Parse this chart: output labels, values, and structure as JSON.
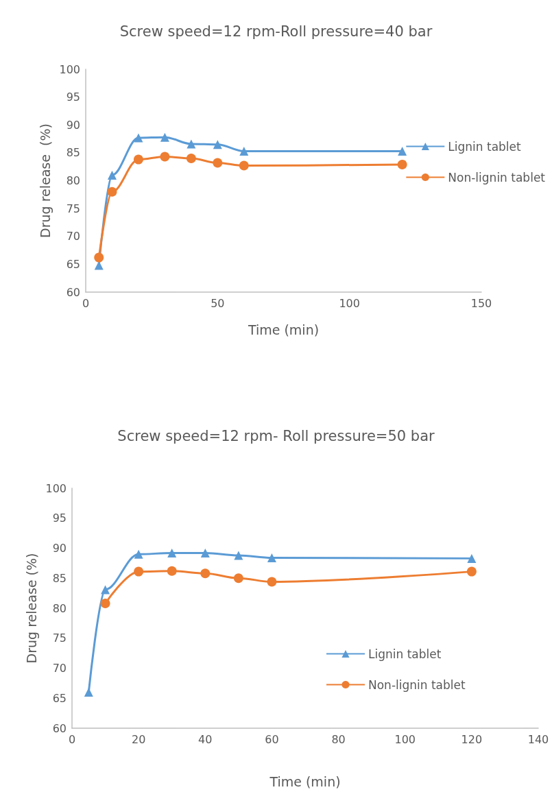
{
  "chart_data": [
    {
      "type": "line",
      "title": "Screw speed=12 rpm-Roll pressure=40 bar",
      "xlabel": "Time (min)",
      "ylabel": "Drug release  (%)",
      "xlim": [
        0,
        150
      ],
      "xticks": [
        0,
        50,
        100,
        150
      ],
      "ylim": [
        60,
        100
      ],
      "yticks": [
        60,
        65,
        70,
        75,
        80,
        85,
        90,
        95,
        100
      ],
      "grid": false,
      "legend": "right",
      "series": [
        {
          "name": "Lignin tablet",
          "color": "#5b9bd5",
          "marker": "triangle",
          "x": [
            5,
            10,
            20,
            30,
            40,
            50,
            60,
            120
          ],
          "values": [
            64.8,
            81.0,
            87.7,
            87.8,
            86.6,
            86.5,
            85.3,
            85.3
          ]
        },
        {
          "name": "Non-lignin tablet",
          "color": "#ed7d31",
          "marker": "circle",
          "x": [
            5,
            10,
            20,
            30,
            40,
            50,
            60,
            120
          ],
          "values": [
            66.2,
            78.0,
            83.8,
            84.3,
            84.0,
            83.2,
            82.7,
            82.9
          ]
        }
      ]
    },
    {
      "type": "line",
      "title": "Screw speed=12 rpm- Roll pressure=50 bar",
      "xlabel": "Time (min)",
      "ylabel": "Drug release (%)",
      "xlim": [
        0,
        140
      ],
      "xticks": [
        0,
        20,
        40,
        60,
        80,
        100,
        120,
        140
      ],
      "ylim": [
        60,
        100
      ],
      "yticks": [
        60,
        65,
        70,
        75,
        80,
        85,
        90,
        95,
        100
      ],
      "grid": false,
      "legend": "bottom right",
      "series": [
        {
          "name": "Lignin tablet",
          "color": "#5b9bd5",
          "marker": "triangle",
          "x": [
            5,
            10,
            20,
            30,
            40,
            50,
            60,
            120
          ],
          "values": [
            66.0,
            83.1,
            89.0,
            89.2,
            89.2,
            88.8,
            88.4,
            88.3
          ]
        },
        {
          "name": "Non-lignin tablet",
          "color": "#ed7d31",
          "marker": "circle",
          "x": [
            10,
            20,
            30,
            40,
            50,
            60,
            120
          ],
          "values": [
            80.8,
            86.1,
            86.2,
            85.8,
            85.0,
            84.4,
            86.1
          ]
        }
      ]
    }
  ]
}
